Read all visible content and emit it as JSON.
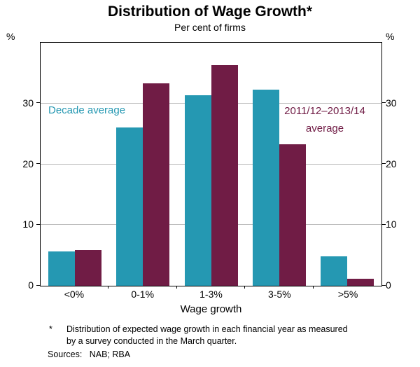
{
  "chart": {
    "title": "Distribution of Wage Growth*",
    "subtitle": "Per cent of firms",
    "xlabel": "Wage growth",
    "y_unit": "%"
  },
  "annotations": {
    "decade_average": "Decade average",
    "recent_line1": "2011/12–2013/14",
    "recent_line2": "average"
  },
  "footnote": {
    "marker": "*",
    "line1": "Distribution of expected wage growth in each financial year as measured",
    "line2": "by a survey conducted in the March quarter.",
    "sources": "Sources:   NAB; RBA"
  },
  "colors": {
    "series1": "#2598b2",
    "series2": "#701c45"
  },
  "chart_data": {
    "type": "bar",
    "categories": [
      "<0%",
      "0-1%",
      "1-3%",
      "3-5%",
      ">5%"
    ],
    "series": [
      {
        "name": "Decade average",
        "color": "#2598b2",
        "values": [
          5.7,
          26.0,
          31.3,
          32.3,
          4.8
        ]
      },
      {
        "name": "2011/12–2013/14 average",
        "color": "#701c45",
        "values": [
          5.9,
          33.3,
          36.3,
          23.3,
          1.2
        ]
      }
    ],
    "title": "Distribution of Wage Growth*",
    "subtitle": "Per cent of firms",
    "xlabel": "Wage growth",
    "ylabel": "%",
    "ylim": [
      0,
      40
    ],
    "yticks": [
      0,
      10,
      20,
      30
    ],
    "grid": true,
    "legend_position": "in-plot text annotations"
  }
}
